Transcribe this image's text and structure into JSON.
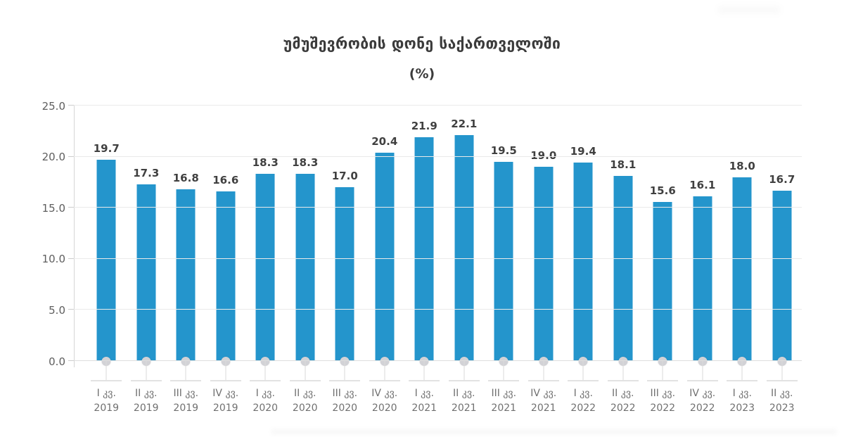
{
  "chart": {
    "title": "უმუშევრობის დონე საქართველოში",
    "subtitle": "(%)"
  },
  "chart_data": {
    "type": "bar",
    "title": "უმუშევრობის დონე საქართველოში",
    "subtitle": "(%)",
    "xlabel": "",
    "ylabel": "",
    "ylim": [
      0,
      25
    ],
    "yticks": [
      0,
      5,
      10,
      15,
      20,
      25
    ],
    "ytick_labels": [
      "0.0",
      "5.0",
      "10.0",
      "15.0",
      "20.0",
      "25.0"
    ],
    "grid": "horizontal",
    "legend": "none",
    "bar_color": "#2495CC",
    "categories": [
      {
        "quarter": "I კვ.",
        "year": "2019"
      },
      {
        "quarter": "II კვ.",
        "year": "2019"
      },
      {
        "quarter": "III კვ.",
        "year": "2019"
      },
      {
        "quarter": "IV კვ.",
        "year": "2019"
      },
      {
        "quarter": "I კვ.",
        "year": "2020"
      },
      {
        "quarter": "II კვ.",
        "year": "2020"
      },
      {
        "quarter": "III კვ.",
        "year": "2020"
      },
      {
        "quarter": "IV კვ.",
        "year": "2020"
      },
      {
        "quarter": "I კვ.",
        "year": "2021"
      },
      {
        "quarter": "II კვ.",
        "year": "2021"
      },
      {
        "quarter": "III კვ.",
        "year": "2021"
      },
      {
        "quarter": "IV კვ.",
        "year": "2021"
      },
      {
        "quarter": "I კვ.",
        "year": "2022"
      },
      {
        "quarter": "II კვ.",
        "year": "2022"
      },
      {
        "quarter": "III კვ.",
        "year": "2022"
      },
      {
        "quarter": "IV კვ.",
        "year": "2022"
      },
      {
        "quarter": "I კვ.",
        "year": "2023"
      },
      {
        "quarter": "II კვ.",
        "year": "2023"
      }
    ],
    "values": [
      19.7,
      17.3,
      16.8,
      16.6,
      18.3,
      18.3,
      17.0,
      20.4,
      21.9,
      22.1,
      19.5,
      19.0,
      19.4,
      18.1,
      15.6,
      16.1,
      18.0,
      16.7
    ],
    "value_labels": [
      "19.7",
      "17.3",
      "16.8",
      "16.6",
      "18.3",
      "18.3",
      "17.0",
      "20.4",
      "21.9",
      "22.1",
      "19.5",
      "19.0",
      "19.4",
      "18.1",
      "15.6",
      "16.1",
      "18.0",
      "16.7"
    ]
  }
}
